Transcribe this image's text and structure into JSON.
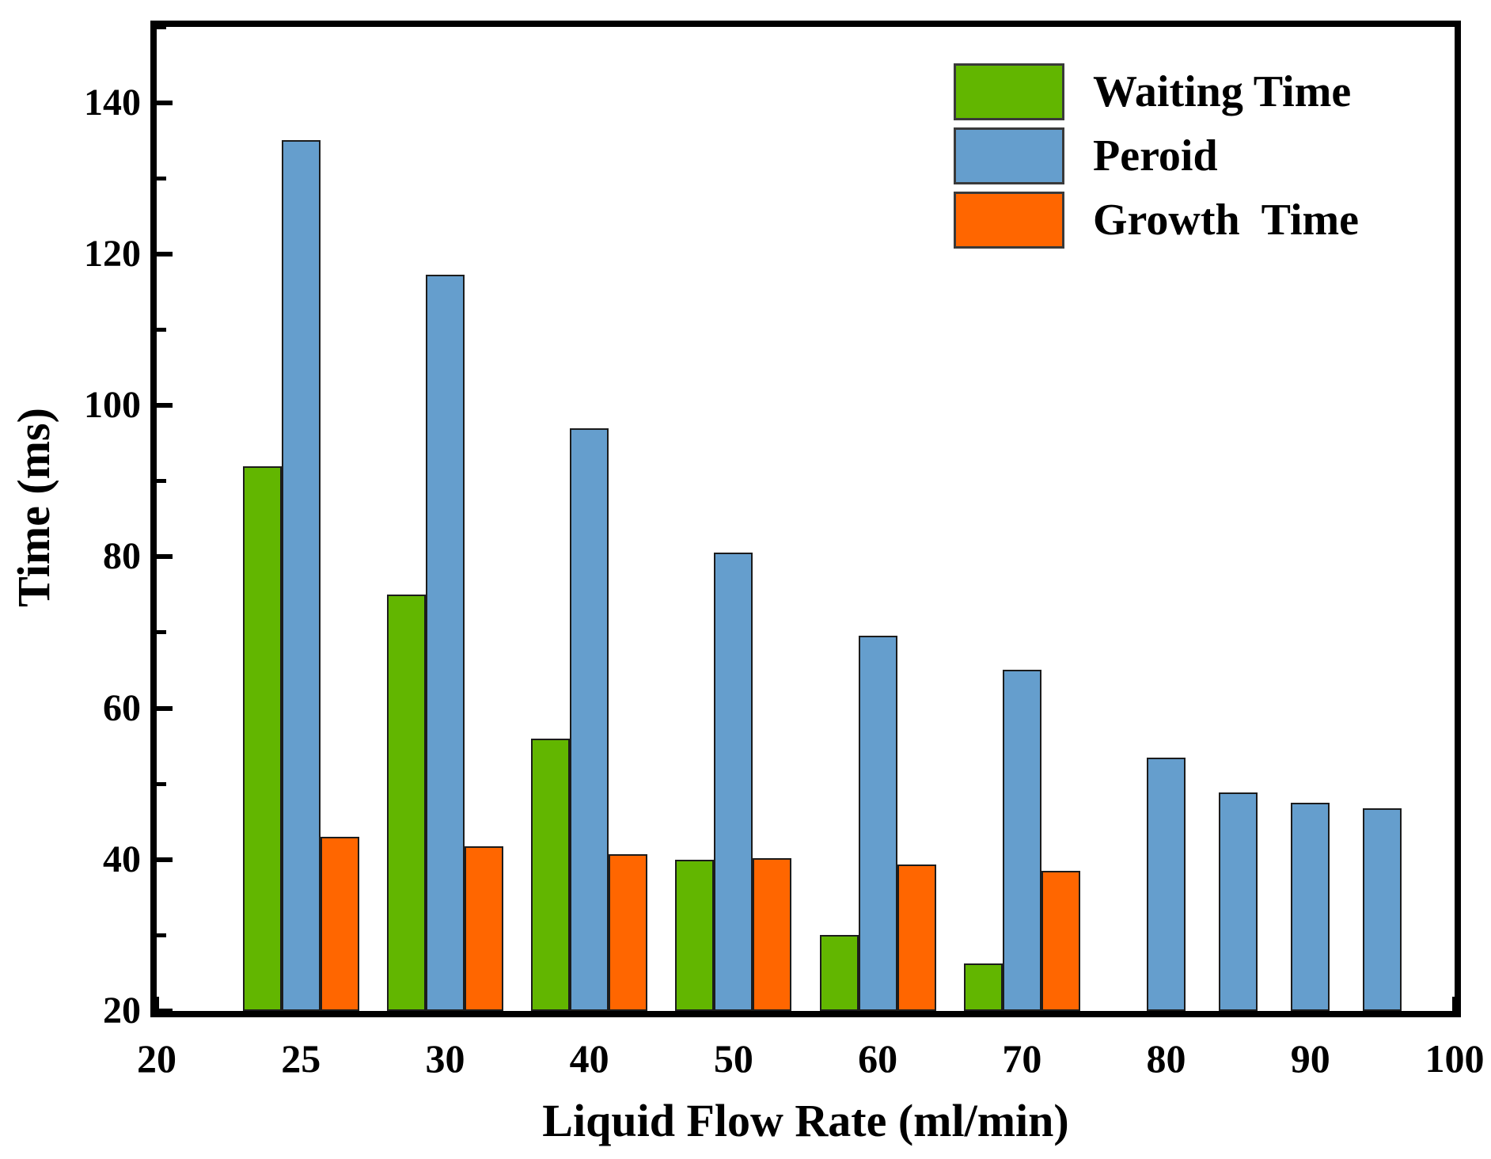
{
  "figure": {
    "background": "#ffffff"
  },
  "axes": {
    "x_title": "Liquid Flow Rate (ml/min)",
    "y_title": "Time (ms)",
    "x_tick_labels": [
      "20",
      "25",
      "30",
      "40",
      "50",
      "60",
      "70",
      "80",
      "90",
      "100"
    ],
    "x_tick_values": [
      20,
      25,
      30,
      40,
      50,
      60,
      70,
      80,
      90,
      100
    ],
    "y_major_ticks": [
      20,
      40,
      60,
      80,
      100,
      120,
      140
    ],
    "y_minor_ticks": [
      30,
      50,
      70,
      90,
      110,
      130,
      150
    ],
    "ylim": [
      20,
      150
    ]
  },
  "legend": {
    "items": [
      {
        "label": "Waiting Time",
        "color": "#62B600"
      },
      {
        "label": "Peroid",
        "color": "#659ECD"
      },
      {
        "label": "Growth  Time",
        "color": "#FF6600"
      }
    ]
  },
  "chart_data": {
    "type": "bar",
    "title": "",
    "xlabel": "Liquid Flow Rate (ml/min)",
    "ylabel": "Time (ms)",
    "x_axis_type": "categorical (evenly spaced ticks, unequal value steps)",
    "x_tick_labels": [
      "20",
      "25",
      "30",
      "40",
      "50",
      "60",
      "70",
      "80",
      "90",
      "100"
    ],
    "ylim": [
      20,
      150
    ],
    "y_major_step": 20,
    "grid": false,
    "legend_position": "upper right, inside plot",
    "series": [
      {
        "name": "Waiting Time",
        "color": "#62B600",
        "points": [
          {
            "x": 25,
            "y": 92
          },
          {
            "x": 30,
            "y": 75
          },
          {
            "x": 40,
            "y": 56
          },
          {
            "x": 50,
            "y": 40
          },
          {
            "x": 60,
            "y": 30
          },
          {
            "x": 70,
            "y": 26.3
          }
        ]
      },
      {
        "name": "Peroid",
        "color": "#659ECD",
        "points": [
          {
            "x": 25,
            "y": 135
          },
          {
            "x": 30,
            "y": 117.3
          },
          {
            "x": 40,
            "y": 97
          },
          {
            "x": 50,
            "y": 80.6
          },
          {
            "x": 60,
            "y": 69.6
          },
          {
            "x": 70,
            "y": 65.1
          },
          {
            "x": 80,
            "y": 53.5
          },
          {
            "x": 85,
            "y": 48.9
          },
          {
            "x": 90,
            "y": 47.5
          },
          {
            "x": 95,
            "y": 46.8
          }
        ]
      },
      {
        "name": "Growth Time",
        "color": "#FF6600",
        "points": [
          {
            "x": 25,
            "y": 43
          },
          {
            "x": 30,
            "y": 41.8
          },
          {
            "x": 40,
            "y": 40.7
          },
          {
            "x": 50,
            "y": 40.2
          },
          {
            "x": 60,
            "y": 39.4
          },
          {
            "x": 70,
            "y": 38.5
          }
        ]
      }
    ]
  }
}
